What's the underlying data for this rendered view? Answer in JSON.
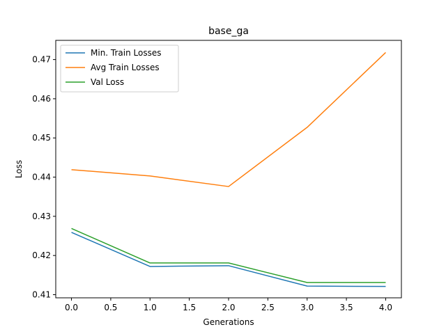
{
  "chart_data": {
    "type": "line",
    "title": "base_ga",
    "xlabel": "Generations",
    "ylabel": "Loss",
    "x": [
      0,
      1,
      2,
      3,
      4
    ],
    "xlim": [
      -0.2,
      4.2
    ],
    "ylim": [
      0.4092,
      0.4749
    ],
    "xticks": [
      0.0,
      0.5,
      1.0,
      1.5,
      2.0,
      2.5,
      3.0,
      3.5,
      4.0
    ],
    "xtick_labels": [
      "0.0",
      "0.5",
      "1.0",
      "1.5",
      "2.0",
      "2.5",
      "3.0",
      "3.5",
      "4.0"
    ],
    "yticks": [
      0.41,
      0.42,
      0.43,
      0.44,
      0.45,
      0.46,
      0.47
    ],
    "ytick_labels": [
      "0.41",
      "0.42",
      "0.43",
      "0.44",
      "0.45",
      "0.46",
      "0.47"
    ],
    "grid": false,
    "legend_position": "top-left",
    "series": [
      {
        "name": "Min. Train Losses",
        "color": "#1f77b4",
        "values": [
          0.4259,
          0.4172,
          0.4174,
          0.4122,
          0.4121
        ]
      },
      {
        "name": "Avg Train Losses",
        "color": "#ff7f0e",
        "values": [
          0.4419,
          0.4403,
          0.4376,
          0.4527,
          0.4718
        ]
      },
      {
        "name": "Val Loss",
        "color": "#2ca02c",
        "values": [
          0.4269,
          0.4181,
          0.4181,
          0.4131,
          0.4131
        ]
      }
    ]
  }
}
